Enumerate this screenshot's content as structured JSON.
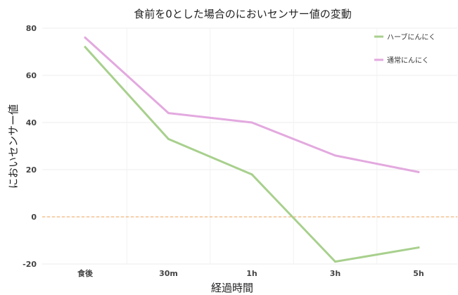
{
  "chart_data": {
    "type": "line",
    "title": "食前を0とした場合のにおいセンサー値の変動",
    "xlabel": "経過時間",
    "ylabel": "においセンサー値",
    "categories": [
      "食後",
      "30m",
      "1h",
      "3h",
      "5h"
    ],
    "ylim": [
      -20,
      80
    ],
    "yticks": [
      "80",
      "60",
      "40",
      "20",
      "0",
      "-20"
    ],
    "grid": true,
    "legend_position": "top-right",
    "reference_line": {
      "y": 0,
      "style": "dashed",
      "color": "#f0a050"
    },
    "series": [
      {
        "name": "ハーブにんにく",
        "color": "#a8d08d",
        "values": [
          72,
          33,
          18,
          -19,
          -13
        ]
      },
      {
        "name": "通常にんにく",
        "color": "#e3a9df",
        "values": [
          76,
          44,
          40,
          26,
          19
        ]
      }
    ]
  }
}
